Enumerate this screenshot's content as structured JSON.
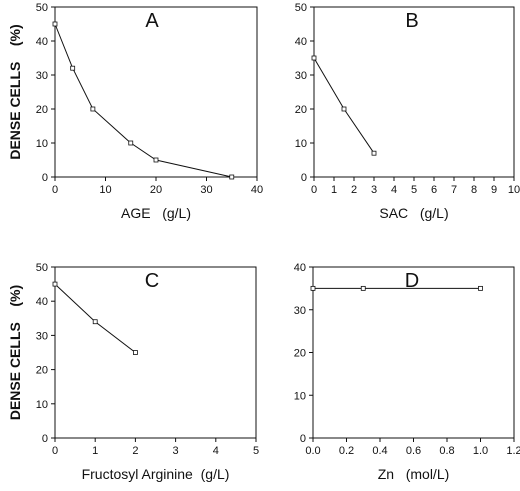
{
  "figure": {
    "ylabel_main": "DENSE CELLS",
    "ylabel_unit": "(%)"
  },
  "chart_data": [
    {
      "type": "line",
      "panel": "A",
      "xlabel": "AGE   (g/L)",
      "ylabel": "DENSE CELLS    (%)",
      "xlim": [
        0,
        40
      ],
      "ylim": [
        0,
        50
      ],
      "xticks": [
        "0",
        "10",
        "20",
        "30",
        "40"
      ],
      "yticks": [
        "0",
        "10",
        "20",
        "30",
        "40",
        "50"
      ],
      "x": [
        0,
        3.5,
        7.5,
        15,
        20,
        35
      ],
      "y": [
        45,
        32,
        20,
        10,
        5,
        0
      ]
    },
    {
      "type": "line",
      "panel": "B",
      "xlabel": "SAC   (g/L)",
      "ylabel": "",
      "xlim": [
        0,
        10
      ],
      "ylim": [
        0,
        50
      ],
      "xticks": [
        "0",
        "1",
        "2",
        "3",
        "4",
        "5",
        "6",
        "7",
        "8",
        "9",
        "10"
      ],
      "yticks": [
        "0",
        "10",
        "20",
        "30",
        "40",
        "50"
      ],
      "x": [
        0,
        1.5,
        3
      ],
      "y": [
        35,
        20,
        7
      ]
    },
    {
      "type": "line",
      "panel": "C",
      "xlabel": "Fructosyl Arginine  (g/L)",
      "ylabel": "DENSE CELLS    (%)",
      "xlim": [
        0,
        5
      ],
      "ylim": [
        0,
        50
      ],
      "xticks": [
        "0",
        "1",
        "2",
        "3",
        "4",
        "5"
      ],
      "yticks": [
        "0",
        "10",
        "20",
        "30",
        "40",
        "50"
      ],
      "x": [
        0,
        1,
        2
      ],
      "y": [
        45,
        34,
        25
      ]
    },
    {
      "type": "line",
      "panel": "D",
      "xlabel": "Zn   (mol/L)",
      "ylabel": "",
      "xlim": [
        0,
        1.2
      ],
      "ylim": [
        0,
        40
      ],
      "xticks": [
        "0.0",
        "0.2",
        "0.4",
        "0.6",
        "0.8",
        "1.0",
        "1.2"
      ],
      "yticks": [
        "0",
        "10",
        "20",
        "30",
        "40"
      ],
      "x": [
        0,
        0.3,
        1.0
      ],
      "y": [
        35,
        35,
        35
      ]
    }
  ]
}
